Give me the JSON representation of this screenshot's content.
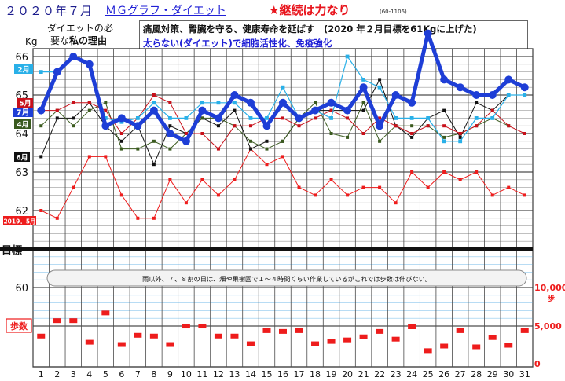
{
  "header": {
    "date": "２０２０年７月",
    "title": "ＭＧグラフ・ダイエット",
    "motto": "★継続は力なり",
    "code": "(60-1106)",
    "reason_line1": "ダイエットの必",
    "reason_line2_a": "要な",
    "reason_line2_b": "私の理由",
    "box_line1_a": "痛風対策、腎臓を守る、健康寿命を延ばす　",
    "box_line1_b": "(2020 年２月目標を61Kgに上げた)",
    "box_line2": "太らない(ダイエット)で細胞活性化、免疫強化",
    "unit": "Kg"
  },
  "labels": {
    "goal": "目標",
    "steps": "歩数",
    "steps_unit": "歩",
    "note": "雨以外、７、８割の日は、畑や果樹園で１～４時間くらい作業しているがこれでは歩数は伸びない。"
  },
  "colors": {
    "jul": "#1e3ed6",
    "feb": "#29b0e8",
    "may": "#c8101a",
    "apr": "#3a5a1e",
    "jun": "#111111",
    "may2019": "#ee1c1c",
    "steps": "#ee1c1c",
    "grid": "#4a4a4a",
    "step_grid": "#8ec8ee"
  },
  "chart_data": {
    "type": "line",
    "x": [
      1,
      2,
      3,
      4,
      5,
      6,
      7,
      8,
      9,
      10,
      11,
      12,
      13,
      14,
      15,
      16,
      17,
      18,
      19,
      20,
      21,
      22,
      23,
      24,
      25,
      26,
      27,
      28,
      29,
      30,
      31
    ],
    "ylim": [
      59,
      66
    ],
    "y_ticks": [
      60,
      61,
      62,
      63,
      64,
      65,
      66
    ],
    "goal_value": 61,
    "series": [
      {
        "name": "7月",
        "key": "jul",
        "width": 5,
        "marker": "circle",
        "values": [
          64.6,
          65.6,
          66.0,
          65.8,
          64.2,
          64.4,
          64.2,
          64.6,
          64.0,
          63.8,
          64.6,
          64.4,
          65.0,
          64.8,
          64.2,
          64.8,
          64.4,
          64.6,
          64.8,
          64.6,
          65.2,
          64.2,
          65.0,
          64.8,
          66.6,
          65.4,
          65.2,
          65.0,
          65.0,
          65.4,
          65.2
        ]
      },
      {
        "name": "2月",
        "key": "feb",
        "width": 1.2,
        "marker": "square",
        "values": [
          65.6,
          65.6,
          66.0,
          65.8,
          64.4,
          64.3,
          64.4,
          64.8,
          64.4,
          64.4,
          64.8,
          64.8,
          64.8,
          64.4,
          64.4,
          65.2,
          64.4,
          64.6,
          64.4,
          66.0,
          65.4,
          65.2,
          64.4,
          64.4,
          64.4,
          63.8,
          63.8,
          64.4,
          64.4,
          65.0,
          65.0
        ]
      },
      {
        "name": "5月",
        "key": "may",
        "width": 1,
        "marker": "square",
        "values": [
          64.6,
          64.6,
          64.8,
          64.8,
          64.6,
          64.0,
          64.4,
          65.0,
          64.8,
          64.0,
          64.0,
          63.6,
          64.2,
          64.2,
          64.4,
          64.4,
          64.2,
          64.4,
          64.6,
          64.4,
          64.0,
          64.4,
          64.2,
          64.0,
          64.2,
          64.2,
          64.0,
          64.2,
          64.6,
          64.2,
          64.0
        ]
      },
      {
        "name": "4月",
        "key": "apr",
        "width": 1,
        "marker": "square",
        "values": [
          64.2,
          64.6,
          64.2,
          64.6,
          64.8,
          63.6,
          63.6,
          63.8,
          63.6,
          64.0,
          64.4,
          64.4,
          64.2,
          63.8,
          63.6,
          63.8,
          64.4,
          64.8,
          64.0,
          63.9,
          64.8,
          63.8,
          64.2,
          64.2,
          64.2,
          63.9,
          64.0,
          64.2,
          64.4,
          64.2,
          null
        ]
      },
      {
        "name": "6月",
        "key": "jun",
        "width": 1,
        "marker": "square",
        "values": [
          63.4,
          64.4,
          64.4,
          64.8,
          64.2,
          63.8,
          64.2,
          63.2,
          64.2,
          64.0,
          64.4,
          64.2,
          64.6,
          63.6,
          63.8,
          63.8,
          64.4,
          64.6,
          64.6,
          64.6,
          64.6,
          65.4,
          64.2,
          63.9,
          64.4,
          64.6,
          63.9,
          64.8,
          64.6,
          65.0,
          null
        ]
      },
      {
        "name": "2019．5月",
        "key": "may2019",
        "width": 1,
        "marker": "square",
        "values": [
          62.0,
          61.8,
          62.6,
          63.4,
          63.4,
          62.4,
          61.8,
          61.8,
          62.8,
          62.2,
          62.8,
          62.4,
          62.8,
          63.6,
          63.2,
          63.4,
          62.6,
          62.4,
          62.8,
          62.4,
          62.6,
          62.6,
          62.2,
          63.0,
          62.6,
          63.0,
          62.8,
          63.0,
          62.4,
          62.6,
          62.4
        ]
      }
    ],
    "steps": {
      "ylim": [
        0,
        10000
      ],
      "ticks": [
        "0",
        "5,000",
        "10,000"
      ],
      "values": [
        3800,
        5800,
        5800,
        3000,
        6800,
        2700,
        3900,
        3800,
        2700,
        5100,
        5100,
        3800,
        3800,
        2800,
        4500,
        4400,
        4500,
        2800,
        3100,
        3300,
        3700,
        4400,
        3400,
        5000,
        1900,
        2500,
        4500,
        2400,
        3600,
        2600,
        4500
      ]
    }
  }
}
